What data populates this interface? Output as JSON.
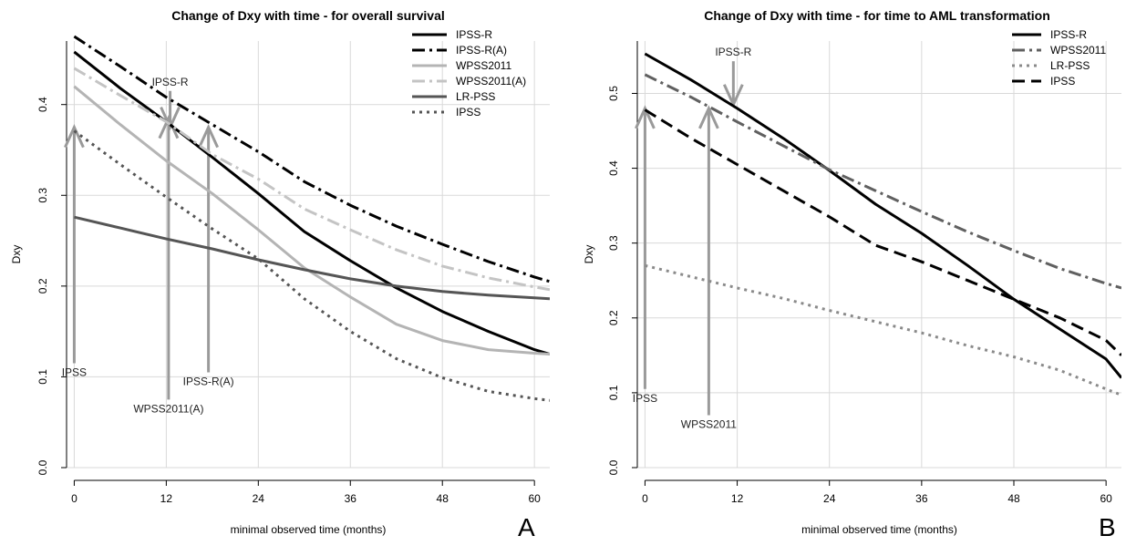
{
  "chart_data": [
    {
      "type": "line",
      "title": "Change of Dxy with time - for overall survival",
      "xlabel": "minimal observed time (months)",
      "ylabel": "Dxy",
      "panel_label": "A",
      "xlim": [
        -1,
        62
      ],
      "ylim": [
        0,
        0.47
      ],
      "xticks": [
        0,
        12,
        24,
        36,
        48,
        60
      ],
      "yticks": [
        0.0,
        0.1,
        0.2,
        0.3,
        0.4
      ],
      "xtick_labels": [
        "0",
        "12",
        "24",
        "36",
        "48",
        "60"
      ],
      "ytick_labels": [
        "0.0",
        "0.1",
        "0.2",
        "0.3",
        "0.4"
      ],
      "grid": true,
      "legend_position": "top-right",
      "series": [
        {
          "name": "IPSS-R",
          "color": "#000000",
          "dash": "solid",
          "x": [
            0,
            6,
            12,
            18,
            24,
            30,
            36,
            42,
            48,
            54,
            60,
            62
          ],
          "y": [
            0.458,
            0.418,
            0.381,
            0.342,
            0.302,
            0.26,
            0.228,
            0.198,
            0.172,
            0.15,
            0.13,
            0.125
          ]
        },
        {
          "name": "IPSS-R(A)",
          "color": "#000000",
          "dash": "dashdot",
          "x": [
            0,
            6,
            12,
            18,
            24,
            30,
            36,
            42,
            48,
            54,
            60,
            62
          ],
          "y": [
            0.475,
            0.442,
            0.408,
            0.378,
            0.348,
            0.315,
            0.289,
            0.266,
            0.246,
            0.227,
            0.21,
            0.205
          ]
        },
        {
          "name": "WPSS2011",
          "color": "#b4b4b4",
          "dash": "solid",
          "x": [
            0,
            6,
            12,
            18,
            24,
            30,
            36,
            42,
            48,
            54,
            60,
            62
          ],
          "y": [
            0.42,
            0.378,
            0.338,
            0.302,
            0.262,
            0.22,
            0.188,
            0.158,
            0.14,
            0.13,
            0.126,
            0.125
          ]
        },
        {
          "name": "WPSS2011(A)",
          "color": "#c4c4c4",
          "dash": "dashdot",
          "x": [
            0,
            6,
            12,
            18,
            24,
            30,
            36,
            42,
            48,
            54,
            60,
            62
          ],
          "y": [
            0.44,
            0.41,
            0.381,
            0.345,
            0.318,
            0.285,
            0.262,
            0.24,
            0.222,
            0.209,
            0.199,
            0.196
          ]
        },
        {
          "name": "LR-PSS",
          "color": "#555555",
          "dash": "solid",
          "x": [
            0,
            6,
            12,
            18,
            24,
            30,
            36,
            42,
            48,
            54,
            60,
            62
          ],
          "y": [
            0.276,
            0.264,
            0.252,
            0.241,
            0.229,
            0.218,
            0.208,
            0.2,
            0.194,
            0.19,
            0.187,
            0.186
          ]
        },
        {
          "name": "IPSS",
          "color": "#555555",
          "dash": "dotted",
          "x": [
            0,
            6,
            12,
            18,
            24,
            30,
            36,
            42,
            48,
            54,
            60,
            62
          ],
          "y": [
            0.371,
            0.334,
            0.298,
            0.263,
            0.23,
            0.186,
            0.15,
            0.12,
            0.099,
            0.084,
            0.076,
            0.074
          ]
        }
      ],
      "annotations": [
        {
          "text": "IPSS-R",
          "x": 12.5,
          "y_top": 0.415,
          "y_tip": 0.375,
          "direction": "down"
        },
        {
          "text": "IPSS",
          "x": 0,
          "y_top": 0.375,
          "y_tip": 0.115,
          "direction": "up"
        },
        {
          "text": "WPSS2011(A)",
          "x": 12.3,
          "y_top": 0.385,
          "y_tip": 0.075,
          "direction": "up"
        },
        {
          "text": "IPSS-R(A)",
          "x": 17.5,
          "y_top": 0.375,
          "y_tip": 0.105,
          "direction": "up"
        }
      ]
    },
    {
      "type": "line",
      "title": "Change of Dxy with time - for time to AML transformation",
      "xlabel": "minimal observed time (months)",
      "ylabel": "Dxy",
      "panel_label": "B",
      "xlim": [
        -1,
        62
      ],
      "ylim": [
        0,
        0.57
      ],
      "xticks": [
        0,
        12,
        24,
        36,
        48,
        60
      ],
      "yticks": [
        0.0,
        0.1,
        0.2,
        0.3,
        0.4,
        0.5
      ],
      "xtick_labels": [
        "0",
        "12",
        "24",
        "36",
        "48",
        "60"
      ],
      "ytick_labels": [
        "0.0",
        "0.1",
        "0.2",
        "0.3",
        "0.4",
        "0.5"
      ],
      "grid": true,
      "legend_position": "top-right",
      "series": [
        {
          "name": "IPSS-R",
          "color": "#000000",
          "dash": "solid",
          "x": [
            0,
            6,
            12,
            18,
            24,
            30,
            36,
            42,
            48,
            54,
            60,
            62
          ],
          "y": [
            0.553,
            0.518,
            0.48,
            0.44,
            0.397,
            0.352,
            0.313,
            0.27,
            0.225,
            0.185,
            0.145,
            0.12
          ]
        },
        {
          "name": "WPSS2011",
          "color": "#606060",
          "dash": "dashdot",
          "x": [
            0,
            6,
            12,
            18,
            24,
            30,
            36,
            42,
            48,
            54,
            60,
            62
          ],
          "y": [
            0.525,
            0.495,
            0.462,
            0.43,
            0.398,
            0.37,
            0.342,
            0.315,
            0.29,
            0.266,
            0.246,
            0.24
          ]
        },
        {
          "name": "LR-PSS",
          "color": "#8a8a8a",
          "dash": "dotted",
          "x": [
            0,
            6,
            12,
            18,
            24,
            30,
            36,
            42,
            48,
            54,
            60,
            62
          ],
          "y": [
            0.27,
            0.255,
            0.24,
            0.226,
            0.21,
            0.195,
            0.18,
            0.163,
            0.148,
            0.13,
            0.105,
            0.097
          ]
        },
        {
          "name": "IPSS",
          "color": "#000000",
          "dash": "dashed",
          "x": [
            0,
            6,
            12,
            18,
            24,
            30,
            36,
            42,
            48,
            54,
            60,
            62
          ],
          "y": [
            0.478,
            0.44,
            0.405,
            0.37,
            0.335,
            0.297,
            0.275,
            0.25,
            0.225,
            0.2,
            0.17,
            0.15
          ]
        }
      ],
      "annotations": [
        {
          "text": "IPSS-R",
          "x": 11.5,
          "y_top": 0.543,
          "y_tip": 0.485,
          "direction": "down"
        },
        {
          "text": "IPSS",
          "x": 0,
          "y_top": 0.48,
          "y_tip": 0.105,
          "direction": "up"
        },
        {
          "text": "WPSS2011",
          "x": 8.3,
          "y_top": 0.48,
          "y_tip": 0.07,
          "direction": "up"
        }
      ]
    }
  ]
}
